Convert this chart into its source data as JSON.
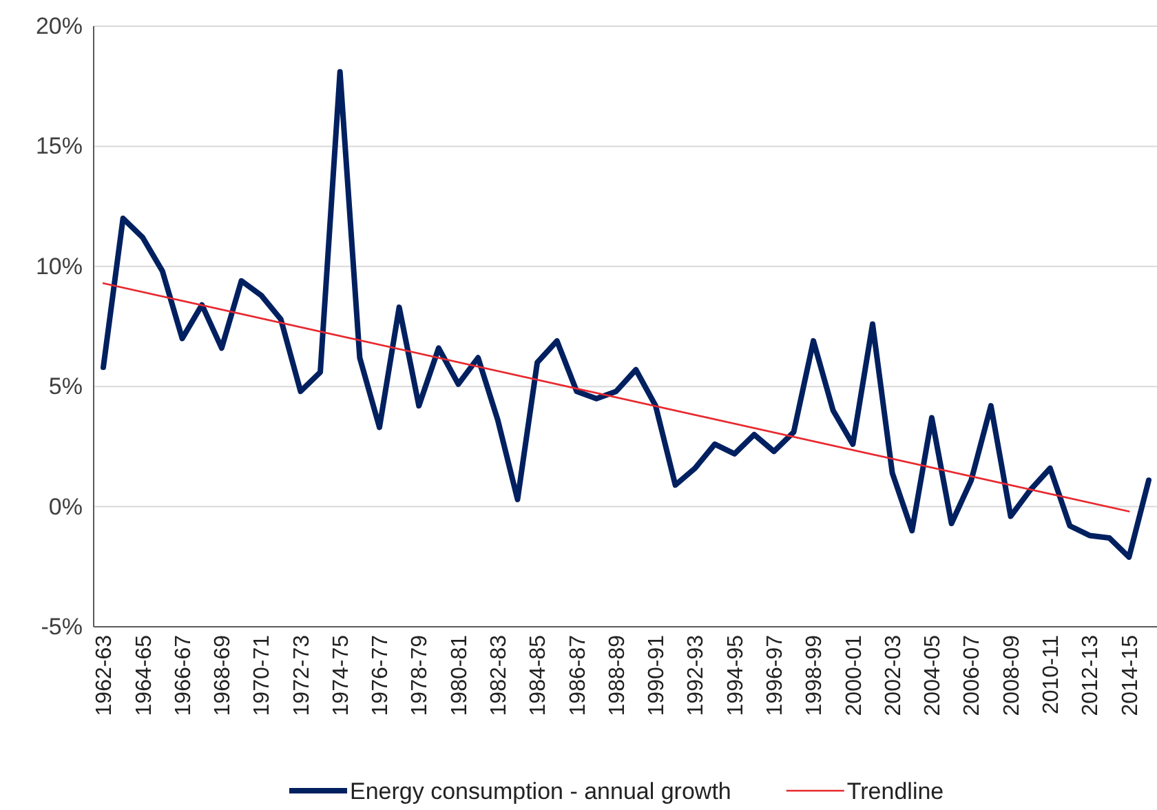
{
  "chart_data": {
    "type": "line",
    "categories": [
      "1962-63",
      null,
      "1964-65",
      null,
      "1966-67",
      null,
      "1968-69",
      null,
      "1970-71",
      null,
      "1972-73",
      null,
      "1974-75",
      null,
      "1976-77",
      null,
      "1978-79",
      null,
      "1980-81",
      null,
      "1982-83",
      null,
      "1984-85",
      null,
      "1986-87",
      null,
      "1988-89",
      null,
      "1990-91",
      null,
      "1992-93",
      null,
      "1994-95",
      null,
      "1996-97",
      null,
      "1998-99",
      null,
      "2000-01",
      null,
      "2002-03",
      null,
      "2004-05",
      null,
      "2006-07",
      null,
      "2008-09",
      null,
      "2010-11",
      null,
      "2012-13",
      null,
      "2014-15",
      null
    ],
    "series": [
      {
        "name": "Energy consumption - annual growth",
        "color": "#002060",
        "values": [
          5.8,
          12.0,
          11.2,
          9.8,
          7.0,
          8.4,
          6.6,
          9.4,
          8.8,
          7.8,
          4.8,
          5.6,
          18.1,
          6.2,
          3.3,
          8.3,
          4.2,
          6.6,
          5.1,
          6.2,
          3.6,
          0.3,
          6.0,
          6.9,
          4.8,
          4.5,
          4.8,
          5.7,
          4.2,
          0.9,
          1.6,
          2.6,
          2.2,
          3.0,
          2.3,
          3.1,
          6.9,
          4.0,
          2.6,
          7.6,
          1.4,
          -1.0,
          3.7,
          -0.7,
          1.1,
          4.2,
          -0.4,
          0.7,
          1.6,
          -0.8,
          -1.2,
          -1.3,
          -2.1,
          1.1
        ]
      },
      {
        "name": "Trendline",
        "color": "#e8282e",
        "x": [
          "1962-63",
          "2014-15"
        ],
        "values": [
          9.3,
          -0.2
        ]
      }
    ],
    "ylim": [
      -5,
      20
    ],
    "yticks": [
      {
        "value": -5,
        "label": "-5%"
      },
      {
        "value": 0,
        "label": "0%"
      },
      {
        "value": 5,
        "label": "5%"
      },
      {
        "value": 10,
        "label": "10%"
      },
      {
        "value": 15,
        "label": "15%"
      },
      {
        "value": 20,
        "label": "20%"
      }
    ],
    "grid": "y",
    "legend": "bottom",
    "marker": "none",
    "line_style": "solid"
  }
}
